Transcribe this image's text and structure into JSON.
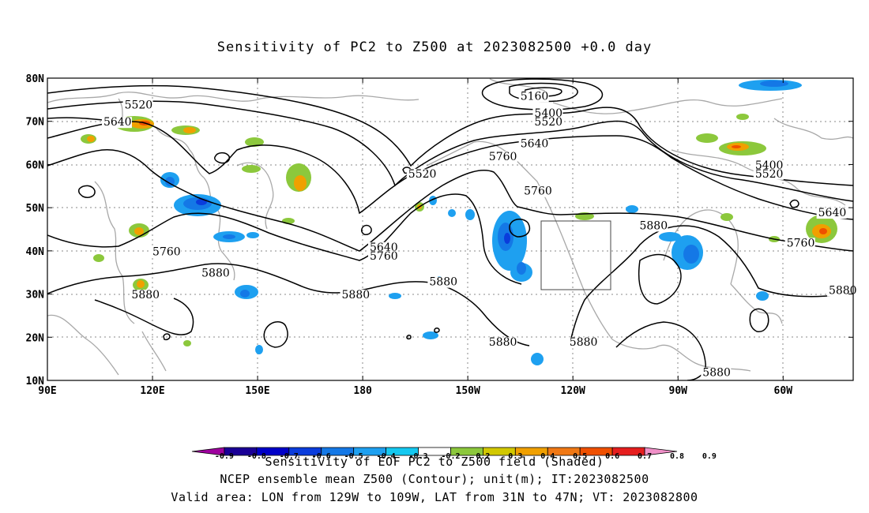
{
  "title": "Sensitivity of PC2 to Z500 at 2023082500 +0.0 day",
  "chart_data": {
    "type": "contour",
    "title": "Sensitivity of PC2 to Z500 at 2023082500 +0.0 day",
    "x_ticks": [
      {
        "lon": 90,
        "label": "90E"
      },
      {
        "lon": 120,
        "label": "120E"
      },
      {
        "lon": 150,
        "label": "150E"
      },
      {
        "lon": 180,
        "label": "180"
      },
      {
        "lon": 210,
        "label": "150W"
      },
      {
        "lon": 240,
        "label": "120W"
      },
      {
        "lon": 270,
        "label": "90W"
      },
      {
        "lon": 300,
        "label": "60W"
      }
    ],
    "y_ticks": [
      {
        "lat": 10,
        "label": "10N"
      },
      {
        "lat": 20,
        "label": "20N"
      },
      {
        "lat": 30,
        "label": "30N"
      },
      {
        "lat": 40,
        "label": "40N"
      },
      {
        "lat": 50,
        "label": "50N"
      },
      {
        "lat": 60,
        "label": "60N"
      },
      {
        "lat": 70,
        "label": "70N"
      },
      {
        "lat": 80,
        "label": "80N"
      }
    ],
    "xlim": [
      90,
      320
    ],
    "ylim": [
      10,
      80
    ],
    "grid": true,
    "contour_labels": [
      {
        "text": "5520",
        "lon": 112,
        "lat": 73
      },
      {
        "text": "5640",
        "lon": 106,
        "lat": 69
      },
      {
        "text": "5160",
        "lon": 225,
        "lat": 75
      },
      {
        "text": "5400",
        "lon": 229,
        "lat": 71
      },
      {
        "text": "5520",
        "lon": 229,
        "lat": 69
      },
      {
        "text": "5640",
        "lon": 225,
        "lat": 64
      },
      {
        "text": "5760",
        "lon": 216,
        "lat": 61
      },
      {
        "text": "5520",
        "lon": 193,
        "lat": 57
      },
      {
        "text": "5760",
        "lon": 226,
        "lat": 53
      },
      {
        "text": "5400",
        "lon": 292,
        "lat": 59
      },
      {
        "text": "5520",
        "lon": 292,
        "lat": 57
      },
      {
        "text": "5640",
        "lon": 310,
        "lat": 48
      },
      {
        "text": "5880",
        "lon": 259,
        "lat": 45
      },
      {
        "text": "5760",
        "lon": 301,
        "lat": 41
      },
      {
        "text": "5640",
        "lon": 182,
        "lat": 40
      },
      {
        "text": "5760",
        "lon": 182,
        "lat": 38
      },
      {
        "text": "5760",
        "lon": 120,
        "lat": 39
      },
      {
        "text": "5880",
        "lon": 134,
        "lat": 34
      },
      {
        "text": "5880",
        "lon": 199,
        "lat": 32
      },
      {
        "text": "5880",
        "lon": 114,
        "lat": 29
      },
      {
        "text": "5880",
        "lon": 174,
        "lat": 29
      },
      {
        "text": "5880",
        "lon": 313,
        "lat": 30
      },
      {
        "text": "5880",
        "lon": 216,
        "lat": 18
      },
      {
        "text": "5880",
        "lon": 239,
        "lat": 18
      },
      {
        "text": "5880",
        "lon": 277,
        "lat": 11
      }
    ],
    "valid_area_box": {
      "lon": [
        231,
        251
      ],
      "lat": [
        31,
        47
      ]
    },
    "colorbar_levels": [
      "-0.9",
      "-0.8",
      "-0.7",
      "-0.6",
      "-0.5",
      "-0.4",
      "-0.3",
      "-0.2",
      "0.2",
      "0.3",
      "0.4",
      "0.5",
      "0.6",
      "0.7",
      "0.8",
      "0.9"
    ],
    "colorbar_colors": [
      "#9e009e",
      "#1a0096",
      "#0000c8",
      "#0a3cdc",
      "#1478e6",
      "#1ea0f0",
      "#14c8f0",
      "#ffffff",
      "#8cc83c",
      "#d2c800",
      "#f0a000",
      "#f07814",
      "#f05000",
      "#e61e1e",
      "#f090c8"
    ]
  },
  "captions": {
    "line1": "Sensitivity of EOF PC2 to Z500 field (Shaded)",
    "line2": "NCEP ensemble mean Z500 (Contour); unit(m); IT:2023082500",
    "line3": "Valid area: LON from 129W to 109W, LAT from 31N to 47N; VT: 2023082800"
  }
}
